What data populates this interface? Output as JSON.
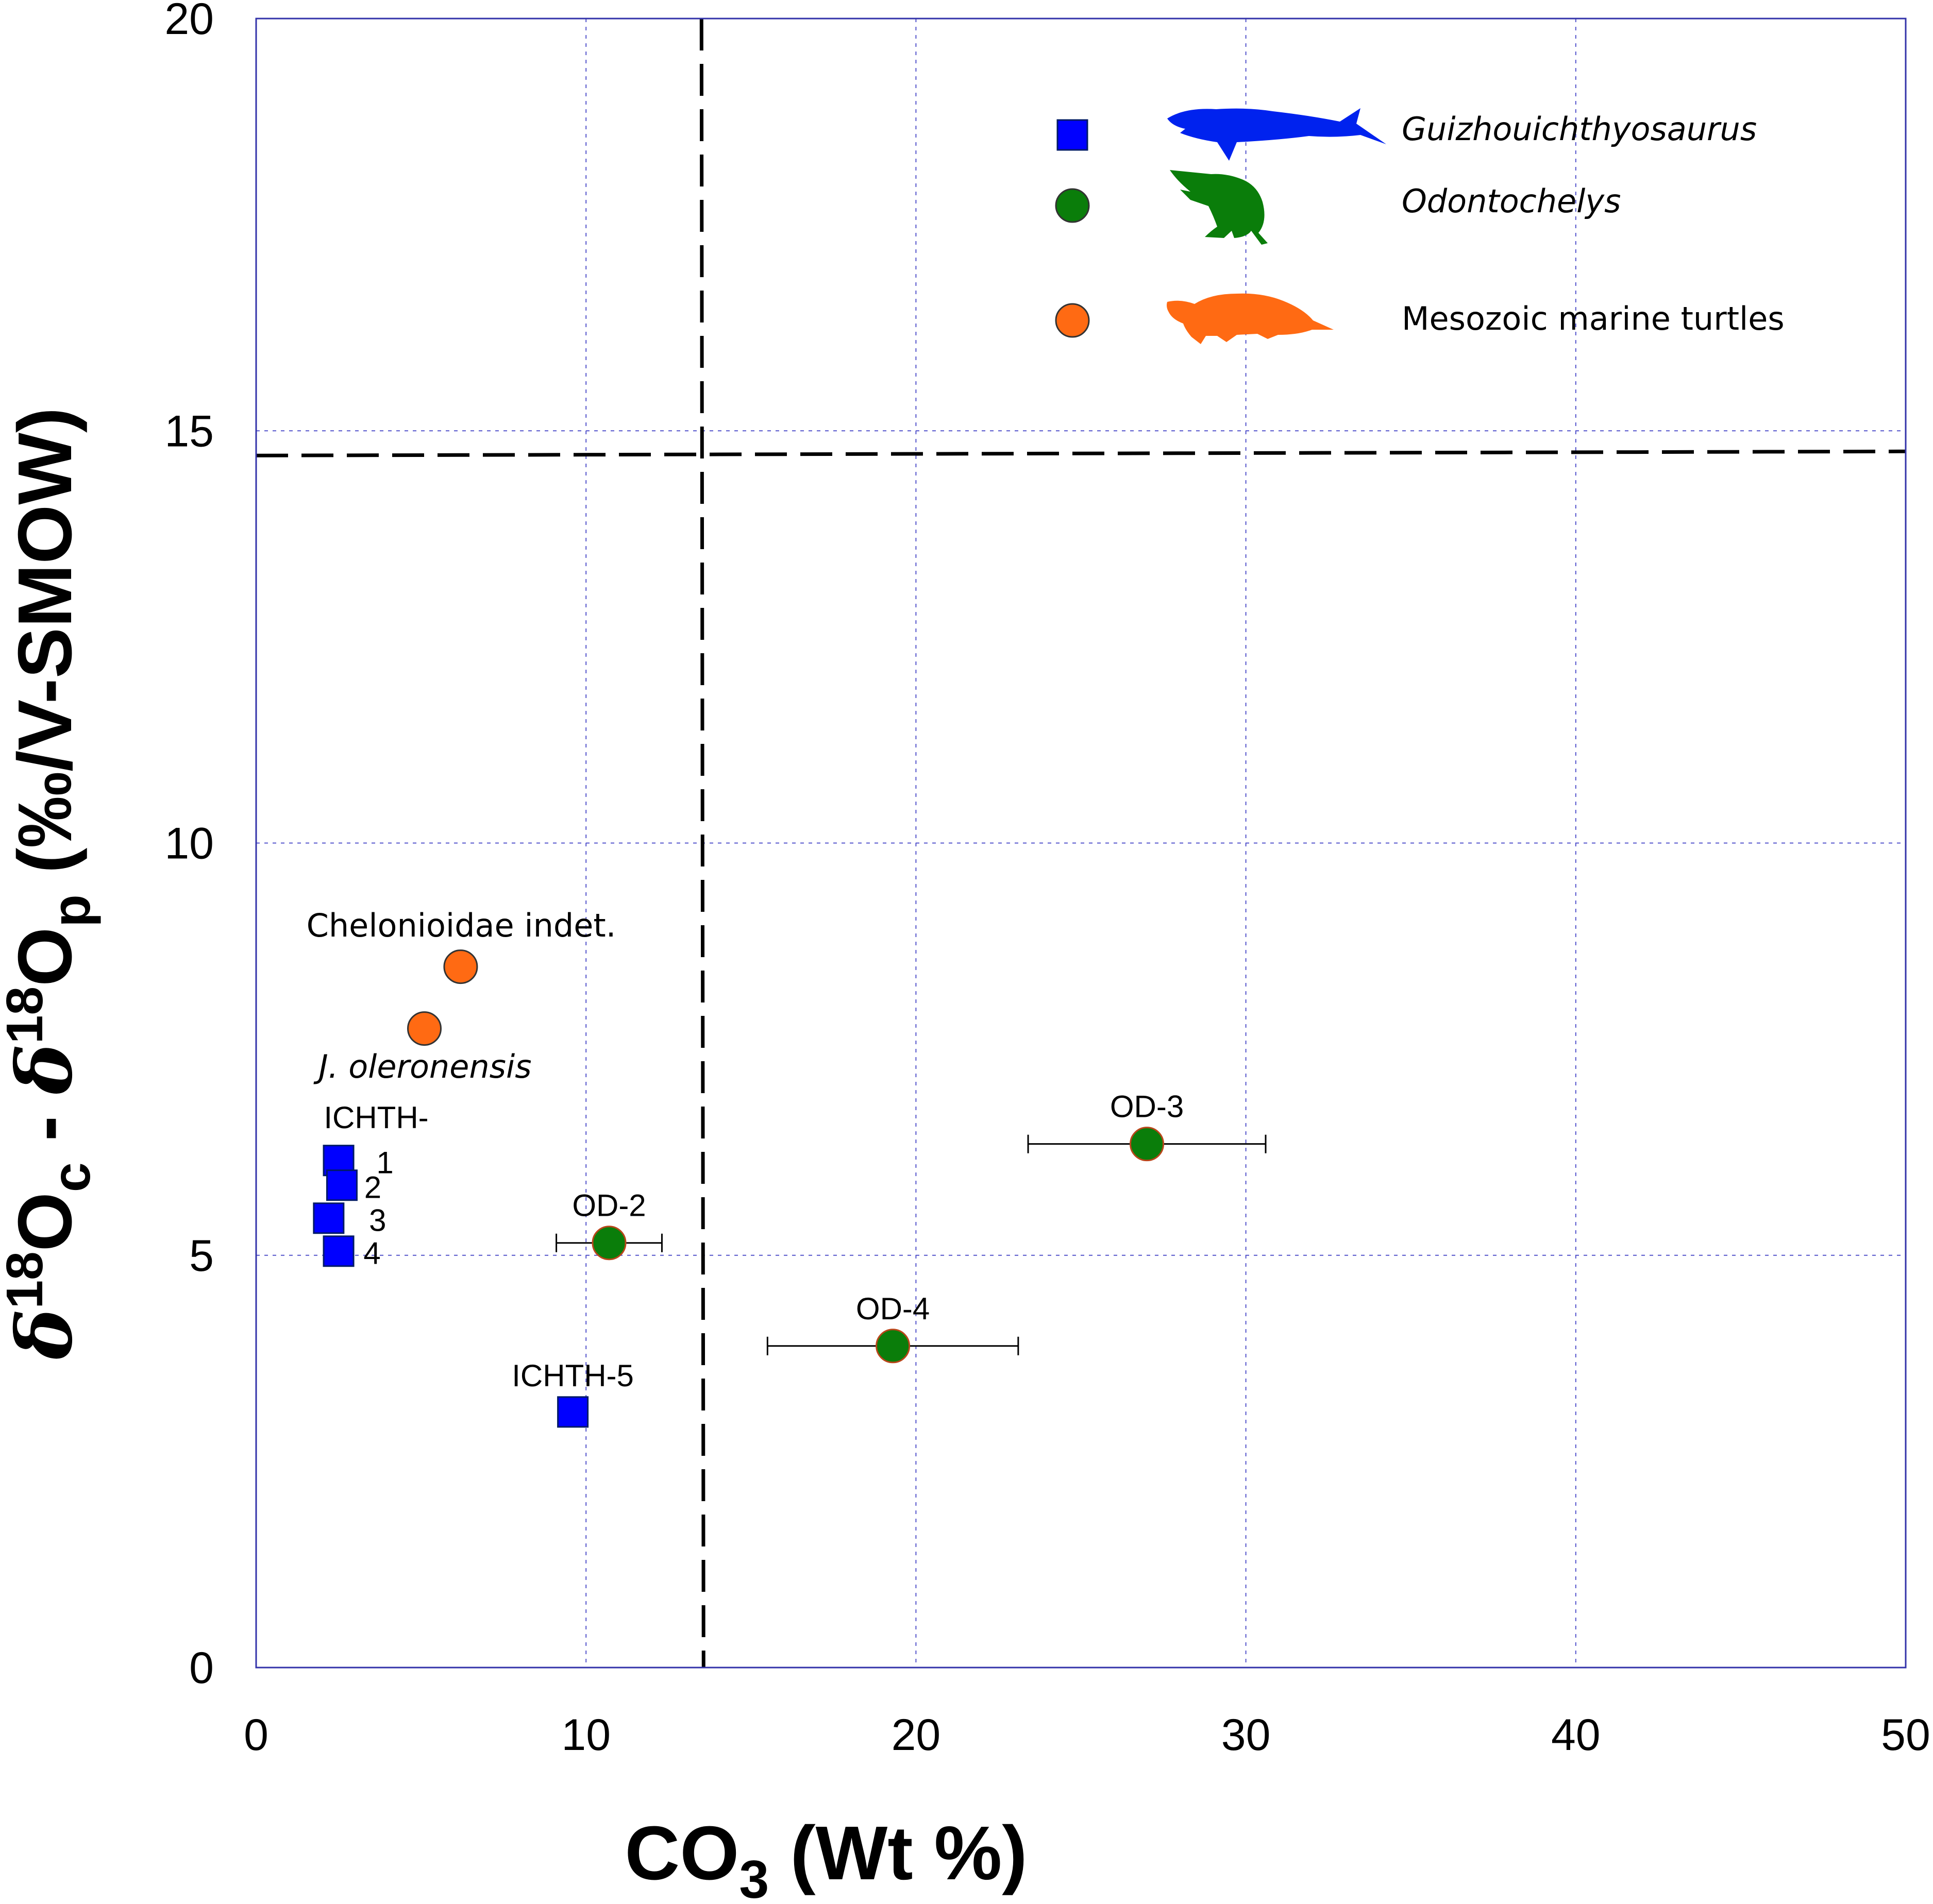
{
  "chart_data": {
    "type": "scatter",
    "xlabel": "CO3 (Wt %)",
    "xlabel_main": "CO",
    "xlabel_sub": "3",
    "xlabel_rest": " (Wt %)",
    "ylabel": "δ18Oc - δ18Op (‰/V-SMOW)",
    "ylabel_parts": {
      "delta": "δ",
      "sup": "18",
      "o": "O",
      "sub_c": "c",
      "minus": " - ",
      "sub_p": "p",
      "unit": " (‰/V-SMOW)"
    },
    "xlim": [
      0,
      50
    ],
    "ylim": [
      0,
      20
    ],
    "xticks": [
      0,
      10,
      20,
      30,
      40,
      50
    ],
    "yticks": [
      0,
      5,
      10,
      15,
      20
    ],
    "xtick_labels": [
      "0",
      "10",
      "20",
      "30",
      "40",
      "50"
    ],
    "ytick_labels": [
      "0",
      "5",
      "10",
      "15",
      "20"
    ],
    "grid": true,
    "reference_lines": {
      "vertical_x": 13.5,
      "horizontal_y": [
        14.7,
        14.75
      ]
    },
    "series": [
      {
        "name": "Guizhouichthyosaurus",
        "marker": "square",
        "color": "#0000ff",
        "points": [
          {
            "x": 2.5,
            "y": 6.15,
            "label": "1"
          },
          {
            "x": 2.6,
            "y": 5.85,
            "label": "2"
          },
          {
            "x": 2.2,
            "y": 5.45,
            "label": "3"
          },
          {
            "x": 2.5,
            "y": 5.05,
            "label": "4"
          },
          {
            "x": 9.6,
            "y": 3.1,
            "label": "ICHTH-5"
          }
        ]
      },
      {
        "name": "Odontochelys",
        "marker": "circle",
        "color": "#0a7d0a",
        "points": [
          {
            "x": 10.7,
            "y": 5.15,
            "xerr": [
              9.1,
              12.3
            ],
            "label": "OD-2"
          },
          {
            "x": 27.0,
            "y": 6.35,
            "xerr": [
              23.4,
              30.6
            ],
            "label": "OD-3"
          },
          {
            "x": 19.3,
            "y": 3.9,
            "xerr": [
              15.5,
              23.1
            ],
            "label": "OD-4"
          }
        ]
      },
      {
        "name": "Mesozoic marine turtles",
        "marker": "circle",
        "color": "#ff6a13",
        "points": [
          {
            "x": 6.2,
            "y": 8.5,
            "xerr": [
              5.9,
              6.5
            ],
            "label": "Chelonioidae indet."
          },
          {
            "x": 5.1,
            "y": 7.75,
            "label": "J. oleronensis"
          }
        ]
      }
    ],
    "group_label": "ICHTH-",
    "legend": {
      "placement": "top-right",
      "entries": [
        {
          "name": "Guizhouichthyosaurus",
          "marker": "square",
          "color": "#0000ff",
          "italic": true,
          "silhouette": "ichthyosaur-icon"
        },
        {
          "name": "Odontochelys",
          "marker": "circle",
          "color": "#0a7d0a",
          "italic": true,
          "silhouette": "stem-turtle-icon"
        },
        {
          "name": "Mesozoic marine turtles",
          "marker": "circle",
          "color": "#ff6a13",
          "italic": false,
          "silhouette": "sea-turtle-icon"
        }
      ]
    }
  },
  "colors": {
    "frame": "#3333aa",
    "grid": "#5555cc",
    "ref_line": "#000000",
    "error_bar": "#000000"
  }
}
